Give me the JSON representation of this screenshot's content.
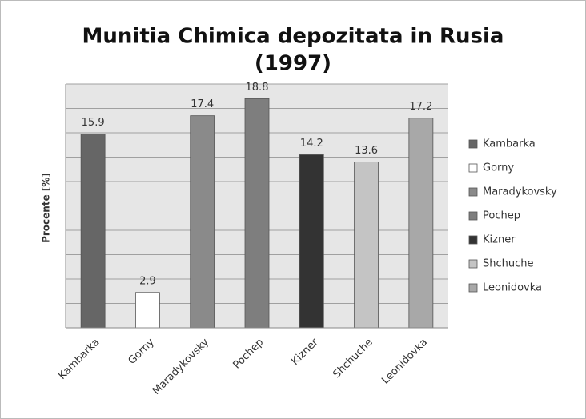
{
  "chart_data": {
    "type": "bar",
    "title": "Munitia Chimica depozitata in Rusia",
    "subtitle": "(1997)",
    "y_label": "Procente [%]",
    "categories": [
      "Kambarka",
      "Gorny",
      "Maradykovsky",
      "Pochep",
      "Kizner",
      "Shchuche",
      "Leonidovka"
    ],
    "values": [
      15.9,
      2.9,
      17.4,
      18.8,
      14.2,
      13.6,
      17.2
    ],
    "colors": [
      "#666666",
      "#ffffff",
      "#8a8a8a",
      "#7e7e7e",
      "#333333",
      "#c4c4c4",
      "#a8a8a8"
    ],
    "ylim": [
      0,
      20
    ],
    "yticks": [
      0,
      2,
      4,
      6,
      8,
      10,
      12,
      14,
      16,
      18,
      20
    ],
    "grid": true,
    "legend": "right"
  }
}
